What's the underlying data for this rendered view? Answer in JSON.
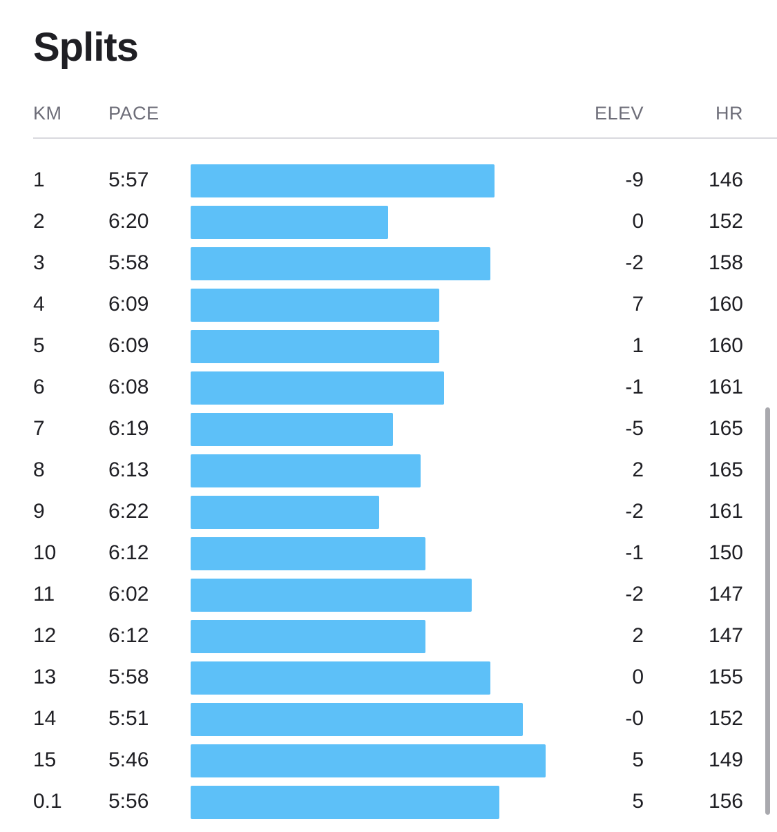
{
  "title": "Splits",
  "colors": {
    "bar": "#5dc0f8",
    "scrollbar": "#a9a9ae",
    "divider": "#d9d9de"
  },
  "columns": {
    "km": "KM",
    "pace": "PACE",
    "elev": "ELEV",
    "hr": "HR"
  },
  "splits": [
    {
      "km": "1",
      "pace": "5:57",
      "pace_seconds": 357,
      "elev": "-9",
      "hr": "146"
    },
    {
      "km": "2",
      "pace": "6:20",
      "pace_seconds": 380,
      "elev": "0",
      "hr": "152"
    },
    {
      "km": "3",
      "pace": "5:58",
      "pace_seconds": 358,
      "elev": "-2",
      "hr": "158"
    },
    {
      "km": "4",
      "pace": "6:09",
      "pace_seconds": 369,
      "elev": "7",
      "hr": "160"
    },
    {
      "km": "5",
      "pace": "6:09",
      "pace_seconds": 369,
      "elev": "1",
      "hr": "160"
    },
    {
      "km": "6",
      "pace": "6:08",
      "pace_seconds": 368,
      "elev": "-1",
      "hr": "161"
    },
    {
      "km": "7",
      "pace": "6:19",
      "pace_seconds": 379,
      "elev": "-5",
      "hr": "165"
    },
    {
      "km": "8",
      "pace": "6:13",
      "pace_seconds": 373,
      "elev": "2",
      "hr": "165"
    },
    {
      "km": "9",
      "pace": "6:22",
      "pace_seconds": 382,
      "elev": "-2",
      "hr": "161"
    },
    {
      "km": "10",
      "pace": "6:12",
      "pace_seconds": 372,
      "elev": "-1",
      "hr": "150"
    },
    {
      "km": "11",
      "pace": "6:02",
      "pace_seconds": 362,
      "elev": "-2",
      "hr": "147"
    },
    {
      "km": "12",
      "pace": "6:12",
      "pace_seconds": 372,
      "elev": "2",
      "hr": "147"
    },
    {
      "km": "13",
      "pace": "5:58",
      "pace_seconds": 358,
      "elev": "0",
      "hr": "155"
    },
    {
      "km": "14",
      "pace": "5:51",
      "pace_seconds": 351,
      "elev": "-0",
      "hr": "152"
    },
    {
      "km": "15",
      "pace": "5:46",
      "pace_seconds": 346,
      "elev": "5",
      "hr": "149"
    },
    {
      "km": "0.1",
      "pace": "5:56",
      "pace_seconds": 356,
      "elev": "5",
      "hr": "156"
    }
  ]
}
